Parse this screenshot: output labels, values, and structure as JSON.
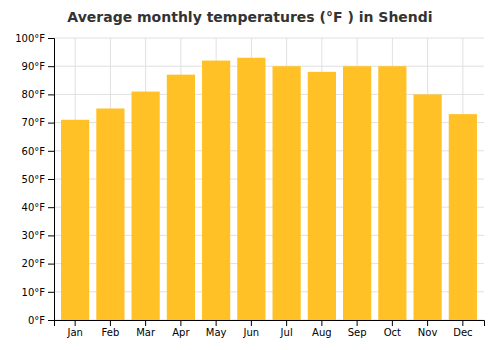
{
  "chart_data": {
    "type": "bar",
    "title": "Average monthly temperatures (°F ) in Shendi",
    "categories": [
      "Jan",
      "Feb",
      "Mar",
      "Apr",
      "May",
      "Jun",
      "Jul",
      "Aug",
      "Sep",
      "Oct",
      "Nov",
      "Dec"
    ],
    "values": [
      71,
      75,
      81,
      87,
      92,
      93,
      90,
      88,
      90,
      90,
      80,
      73
    ],
    "color": "#FFC125",
    "ylim": [
      0,
      100
    ],
    "yticks": [
      {
        "value": 0,
        "label": "0°F"
      },
      {
        "value": 10,
        "label": "10°F"
      },
      {
        "value": 20,
        "label": "20°F"
      },
      {
        "value": 30,
        "label": "30°F"
      },
      {
        "value": 40,
        "label": "40°F"
      },
      {
        "value": 50,
        "label": "50°F"
      },
      {
        "value": 60,
        "label": "60°F"
      },
      {
        "value": 70,
        "label": "70°F"
      },
      {
        "value": 80,
        "label": "80°F"
      },
      {
        "value": 90,
        "label": "90°F"
      },
      {
        "value": 100,
        "label": "100°F"
      }
    ],
    "grid": true
  }
}
